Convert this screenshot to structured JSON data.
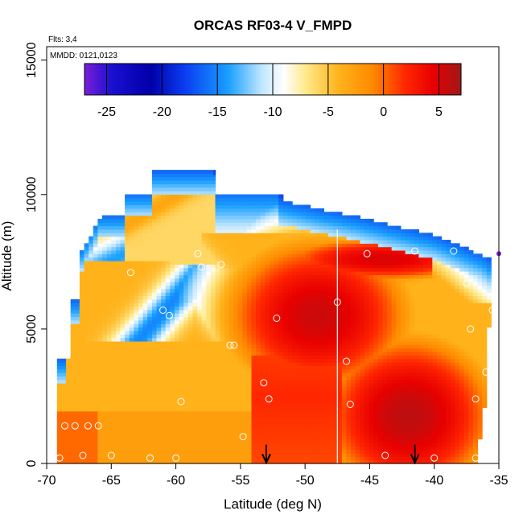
{
  "chart_data": {
    "type": "heatmap",
    "title": "ORCAS RF03-4 V_FMPD",
    "annotations": {
      "flights": "Flts: 3,4",
      "dates": "MMDD: 0121,0123"
    },
    "xlabel": "Latitude (deg N)",
    "ylabel": "Altitude (m)",
    "xlim": [
      -70,
      -35
    ],
    "ylim": [
      0,
      15500
    ],
    "xticks": [
      -70,
      -65,
      -60,
      -55,
      -50,
      -45,
      -40,
      -35
    ],
    "yticks": [
      0,
      5000,
      10000,
      15000
    ],
    "colorbar": {
      "range": [
        -27,
        7
      ],
      "ticks": [
        -25,
        -20,
        -15,
        -10,
        -5,
        0,
        5
      ],
      "stops": [
        {
          "v": -27,
          "c": "#7a1fd8"
        },
        {
          "v": -24.5,
          "c": "#1a0fd0"
        },
        {
          "v": -21,
          "c": "#0000a8"
        },
        {
          "v": -18,
          "c": "#0a3cf0"
        },
        {
          "v": -14,
          "c": "#1aa0ff"
        },
        {
          "v": -11,
          "c": "#bfe6ff"
        },
        {
          "v": -9,
          "c": "#ffffff"
        },
        {
          "v": -7,
          "c": "#ffe98a"
        },
        {
          "v": -4,
          "c": "#ffb21a"
        },
        {
          "v": -1,
          "c": "#ff8a00"
        },
        {
          "v": 2,
          "c": "#ff2600"
        },
        {
          "v": 4.5,
          "c": "#e80000"
        },
        {
          "v": 7,
          "c": "#a01818"
        }
      ]
    },
    "field_regions": [
      {
        "name": "lower-orange-band",
        "lat": [
          -69,
          -55
        ],
        "alt": [
          0,
          4000
        ],
        "value": -3
      },
      {
        "name": "western-blue-wedge",
        "lat": [
          -66,
          -55
        ],
        "alt": [
          5000,
          8500
        ],
        "value": -14
      },
      {
        "name": "central-red-core",
        "lat": [
          -55,
          -40
        ],
        "alt": [
          2000,
          8000
        ],
        "value": 4
      },
      {
        "name": "southern-red-surface",
        "lat": [
          -47,
          -37
        ],
        "alt": [
          0,
          3000
        ],
        "value": 4
      },
      {
        "name": "upper-blue-cap",
        "lat": [
          -63,
          -44
        ],
        "alt": [
          9500,
          10800
        ],
        "value": -16
      },
      {
        "name": "eastern-blue-top",
        "lat": [
          -40,
          -35
        ],
        "alt": [
          6000,
          8000
        ],
        "value": -20
      }
    ],
    "vertical_line_lat": -47.5,
    "arrow_lats": [
      -53,
      -41.5
    ],
    "profile_points": [
      [
        -69,
        200
      ],
      [
        -68.6,
        1400
      ],
      [
        -67.8,
        1400
      ],
      [
        -67.2,
        300
      ],
      [
        -66.8,
        1400
      ],
      [
        -66,
        1400
      ],
      [
        -65,
        300
      ],
      [
        -62,
        200
      ],
      [
        -60,
        200
      ],
      [
        -59.6,
        2300
      ],
      [
        -58,
        7300
      ],
      [
        -58.3,
        7800
      ],
      [
        -56.5,
        7400
      ],
      [
        -60.5,
        5500
      ],
      [
        -61,
        5700
      ],
      [
        -63.5,
        7100
      ],
      [
        -55.8,
        4400
      ],
      [
        -55.5,
        4400
      ],
      [
        -54.8,
        1000
      ],
      [
        -53.2,
        3000
      ],
      [
        -52.8,
        2400
      ],
      [
        -52.2,
        5400
      ],
      [
        -47.5,
        6000
      ],
      [
        -46.8,
        3800
      ],
      [
        -46.5,
        2200
      ],
      [
        -45.2,
        7800
      ],
      [
        -43.8,
        300
      ],
      [
        -41.5,
        7900
      ],
      [
        -40,
        200
      ],
      [
        -38.5,
        7900
      ],
      [
        -37.5,
        6700
      ],
      [
        -37.2,
        5000
      ],
      [
        -36.8,
        2400
      ],
      [
        -36,
        3400
      ],
      [
        -35.5,
        5700
      ],
      [
        -35,
        7800
      ],
      [
        -36.8,
        200
      ]
    ]
  }
}
